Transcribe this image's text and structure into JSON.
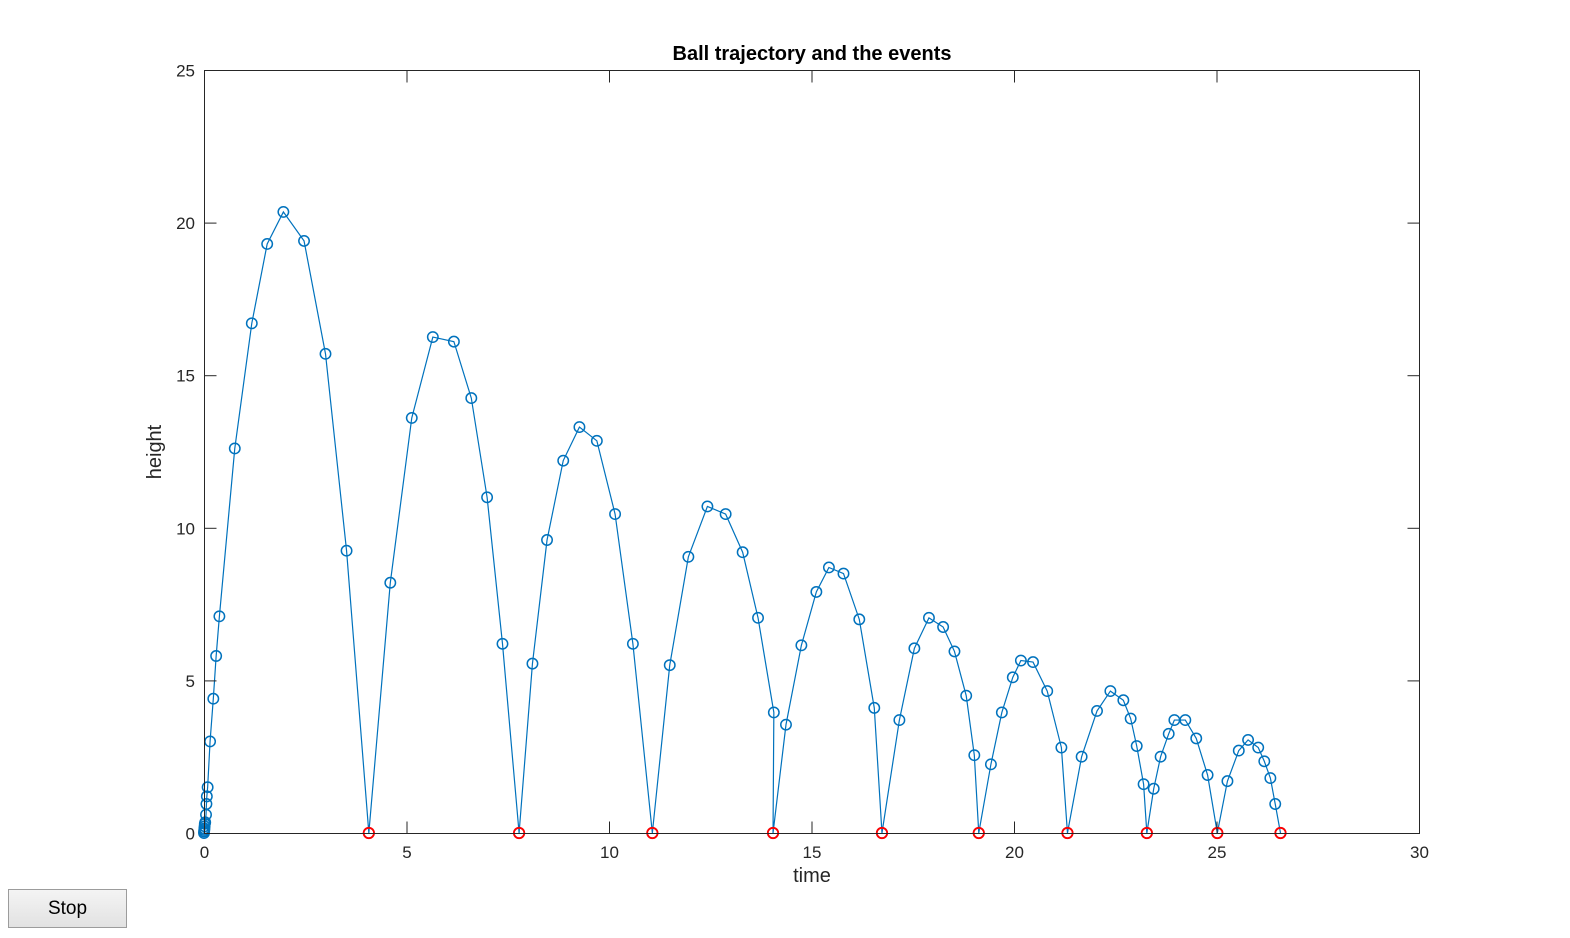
{
  "chart_data": {
    "type": "scatter",
    "title": "Ball trajectory and the events",
    "xlabel": "time",
    "ylabel": "height",
    "xlim": [
      0,
      30
    ],
    "ylim": [
      0,
      25
    ],
    "xticks": [
      0,
      5,
      10,
      15,
      20,
      25,
      30
    ],
    "yticks": [
      0,
      5,
      10,
      15,
      20,
      25
    ],
    "grid": false,
    "legend": "none",
    "colors": {
      "trajectory": "#0072BD",
      "events": "#FF0000"
    },
    "series": [
      {
        "style": "line-with-circle-markers",
        "points": [
          [
            0.0,
            0.0
          ],
          [
            0.003,
            0.05
          ],
          [
            0.007,
            0.1
          ],
          [
            0.01,
            0.15
          ],
          [
            0.015,
            0.22
          ],
          [
            0.02,
            0.3
          ],
          [
            0.03,
            0.35
          ],
          [
            0.05,
            0.6
          ],
          [
            0.06,
            0.95
          ],
          [
            0.07,
            1.2
          ],
          [
            0.09,
            1.5
          ],
          [
            0.15,
            3.0
          ],
          [
            0.23,
            4.4
          ],
          [
            0.3,
            5.8
          ],
          [
            0.38,
            7.1
          ],
          [
            0.76,
            12.6
          ],
          [
            1.18,
            16.7
          ],
          [
            1.56,
            19.3
          ],
          [
            1.96,
            20.35
          ],
          [
            2.47,
            19.4
          ],
          [
            3.0,
            15.7
          ],
          [
            3.52,
            9.25
          ],
          [
            4.07,
            0.0
          ],
          [
            4.6,
            8.2
          ],
          [
            5.13,
            13.6
          ],
          [
            5.65,
            16.25
          ],
          [
            6.17,
            16.1
          ],
          [
            6.6,
            14.25
          ],
          [
            6.99,
            11.0
          ],
          [
            7.37,
            6.2
          ],
          [
            7.78,
            0.0
          ],
          [
            8.11,
            5.55
          ],
          [
            8.47,
            9.6
          ],
          [
            8.87,
            12.2
          ],
          [
            9.27,
            13.3
          ],
          [
            9.7,
            12.85
          ],
          [
            10.15,
            10.45
          ],
          [
            10.59,
            6.2
          ],
          [
            11.07,
            0.0
          ],
          [
            11.5,
            5.5
          ],
          [
            11.96,
            9.05
          ],
          [
            12.43,
            10.7
          ],
          [
            12.88,
            10.45
          ],
          [
            13.3,
            9.2
          ],
          [
            13.68,
            7.05
          ],
          [
            14.07,
            3.95
          ],
          [
            14.05,
            0.0
          ],
          [
            14.37,
            3.55
          ],
          [
            14.75,
            6.15
          ],
          [
            15.12,
            7.9
          ],
          [
            15.43,
            8.7
          ],
          [
            15.79,
            8.5
          ],
          [
            16.18,
            7.0
          ],
          [
            16.55,
            4.1
          ],
          [
            16.74,
            0.0
          ],
          [
            17.17,
            3.7
          ],
          [
            17.54,
            6.05
          ],
          [
            17.9,
            7.05
          ],
          [
            18.25,
            6.75
          ],
          [
            18.53,
            5.95
          ],
          [
            18.82,
            4.5
          ],
          [
            19.02,
            2.55
          ],
          [
            19.13,
            0.0
          ],
          [
            19.43,
            2.25
          ],
          [
            19.7,
            3.95
          ],
          [
            19.97,
            5.1
          ],
          [
            20.17,
            5.65
          ],
          [
            20.47,
            5.6
          ],
          [
            20.82,
            4.65
          ],
          [
            21.17,
            2.8
          ],
          [
            21.32,
            0.0
          ],
          [
            21.67,
            2.5
          ],
          [
            22.05,
            4.0
          ],
          [
            22.38,
            4.65
          ],
          [
            22.7,
            4.35
          ],
          [
            22.88,
            3.75
          ],
          [
            23.03,
            2.85
          ],
          [
            23.2,
            1.6
          ],
          [
            23.28,
            0.0
          ],
          [
            23.45,
            1.45
          ],
          [
            23.62,
            2.5
          ],
          [
            23.82,
            3.25
          ],
          [
            23.96,
            3.7
          ],
          [
            24.23,
            3.7
          ],
          [
            24.5,
            3.1
          ],
          [
            24.78,
            1.9
          ],
          [
            25.02,
            0.0
          ],
          [
            25.27,
            1.7
          ],
          [
            25.55,
            2.7
          ],
          [
            25.78,
            3.05
          ],
          [
            26.03,
            2.8
          ],
          [
            26.18,
            2.35
          ],
          [
            26.33,
            1.8
          ],
          [
            26.45,
            0.95
          ],
          [
            26.58,
            0.0
          ]
        ]
      },
      {
        "style": "circle-markers",
        "points": [
          [
            4.07,
            0.0
          ],
          [
            7.78,
            0.0
          ],
          [
            11.07,
            0.0
          ],
          [
            14.05,
            0.0
          ],
          [
            16.74,
            0.0
          ],
          [
            19.13,
            0.0
          ],
          [
            21.32,
            0.0
          ],
          [
            23.28,
            0.0
          ],
          [
            25.02,
            0.0
          ],
          [
            26.58,
            0.0
          ]
        ]
      }
    ]
  },
  "controls": {
    "stop_label": "Stop"
  }
}
